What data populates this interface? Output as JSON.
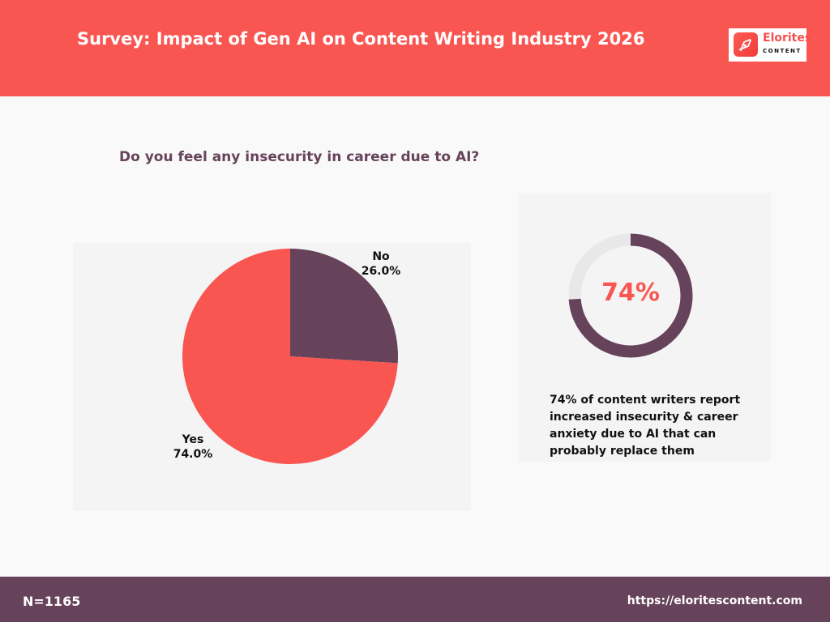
{
  "header": {
    "title": "Survey: Impact of Gen AI on Content Writing Industry 2026",
    "color": "#f95652"
  },
  "logo": {
    "name": "Elorites",
    "sub": "CONTENT",
    "icon": "pen-nib-icon"
  },
  "question": "Do you feel any insecurity in career due to AI?",
  "chart_data": {
    "type": "pie",
    "title": "Do you feel any insecurity in career due to AI?",
    "categories": [
      "No",
      "Yes"
    ],
    "values": [
      26.0,
      74.0
    ],
    "labels": [
      "26.0%",
      "74.0%"
    ],
    "colors": [
      "#66435a",
      "#f95652"
    ]
  },
  "stat": {
    "value": 74,
    "value_label": "74%",
    "description": "74% of content writers report increased insecurity & career anxiety due to AI that can probably replace them",
    "colors": {
      "fill": "#66435a",
      "track": "#e8e8e8"
    }
  },
  "footer": {
    "n": "N=1165",
    "url": "https://eloritescontent.com",
    "color": "#66435a"
  }
}
